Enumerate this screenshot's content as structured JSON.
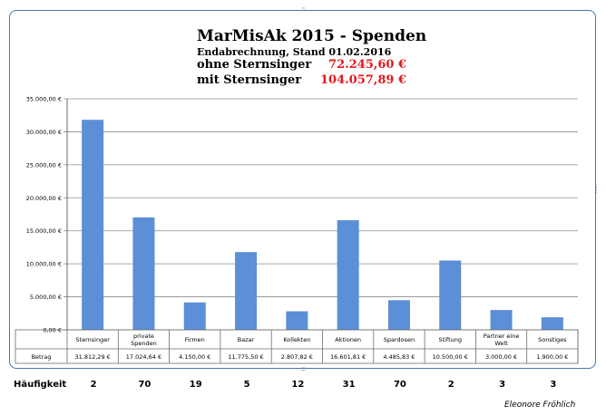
{
  "chart_data": {
    "type": "bar",
    "title": "MarMisAk 2015 - Spenden",
    "subtitle": "Endabrechnung,  Stand 01.02.2016",
    "summary": [
      {
        "label": "ohne Sternsinger",
        "value": "72.245,60 €"
      },
      {
        "label": "mit Sternsinger",
        "value": "104.057,89 €"
      }
    ],
    "ylim": [
      0,
      35000
    ],
    "yticks": [
      "0,00 €",
      "5.000,00 €",
      "10.000,00 €",
      "15.000,00 €",
      "20.000,00 €",
      "25.000,00 €",
      "30.000,00 €",
      "35.000,00 €"
    ],
    "grid": true,
    "categories": [
      "Sternsinger",
      "private Spenden",
      "Firmen",
      "Bazar",
      "Kollekten",
      "Aktionen",
      "Spardosen",
      "Stiftung",
      "Partner eine Welt",
      "Sonstiges"
    ],
    "series": [
      {
        "name": "Betrag",
        "color": "#5b8fd7",
        "values": [
          31812.29,
          17024.64,
          4150.0,
          11775.5,
          2807.82,
          16601.81,
          4485.83,
          10500.0,
          3000.0,
          1900.0
        ],
        "labels": [
          "31.812,29 €",
          "17.024,64 €",
          "4.150,00 €",
          "11.775,50 €",
          "2.807,82 €",
          "16.601,81 €",
          "4.485,83 €",
          "10.500,00 €",
          "3.000,00 €",
          "1.900,00 €"
        ]
      }
    ]
  },
  "frequency": {
    "label": "Häufigkeit",
    "values": [
      "2",
      "70",
      "19",
      "5",
      "12",
      "31",
      "70",
      "2",
      "3",
      "3"
    ]
  },
  "author": "Eleonore Fröhlich"
}
